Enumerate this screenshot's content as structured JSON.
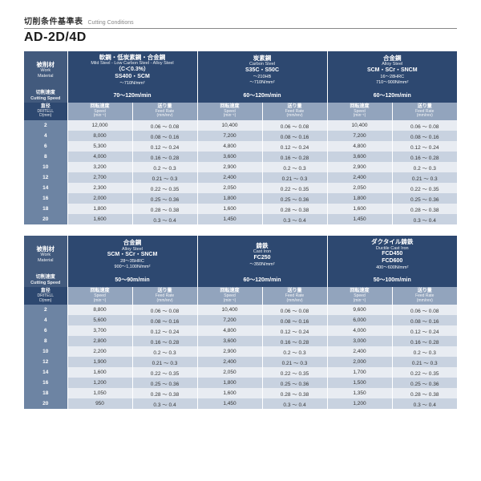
{
  "header": {
    "subtitle_jp": "切削条件基準表",
    "subtitle_en": "Cutting Conditions",
    "title": "AD-2D/4D"
  },
  "labels": {
    "work_material_jp": "被削材",
    "work_material_en": "Work\nMaterial",
    "cutting_speed_jp": "切削速度",
    "cutting_speed_en": "Cutting Speed",
    "diameter_jp": "直径",
    "diameter_en": "DRITELL\nD(mm)",
    "rotation_jp": "回転速度",
    "rotation_en": "Speed\n(min⁻¹)",
    "feed_jp": "送り量",
    "feed_en": "Feed Rate\n(mm/rev)"
  },
  "colors": {
    "header_bg": "#2d4870",
    "header_left_bg": "#425a7d",
    "subhead_bg": "#92a4bd",
    "dia_col_bg": "#6d84a3",
    "row_even": "#e8ecf2",
    "row_odd": "#c8d2e0",
    "text": "#333333"
  },
  "table1": {
    "materials": [
      {
        "title_jp": "軟鋼・低炭素鋼・合金鋼",
        "title_en": "Mild Steel - Low Carbon Steel - Alloy Steel",
        "code": "（C＜0.3%）\nSS400・SCM",
        "hb": "～710N/mm²",
        "speed": "70～120m/min"
      },
      {
        "title_jp": "炭素鋼",
        "title_en": "Carbon Steel",
        "code": "S35C・S50C",
        "hb": "～210HB\n～710N/mm²",
        "speed": "60～120m/min"
      },
      {
        "title_jp": "合金鋼",
        "title_en": "Alloy Steel",
        "code": "SCM・SCr・SNCM",
        "hb": "16～28HRC\n710～900N/mm²",
        "speed": "60～120m/min"
      }
    ],
    "rows": [
      {
        "d": "2",
        "v": [
          [
            "12,000",
            "0.06 ～ 0.08"
          ],
          [
            "10,400",
            "0.06 ～ 0.08"
          ],
          [
            "10,400",
            "0.06 ～ 0.08"
          ]
        ]
      },
      {
        "d": "4",
        "v": [
          [
            "8,000",
            "0.08 ～ 0.16"
          ],
          [
            "7,200",
            "0.08 ～ 0.16"
          ],
          [
            "7,200",
            "0.08 ～ 0.16"
          ]
        ]
      },
      {
        "d": "6",
        "v": [
          [
            "5,300",
            "0.12 ～ 0.24"
          ],
          [
            "4,800",
            "0.12 ～ 0.24"
          ],
          [
            "4,800",
            "0.12 ～ 0.24"
          ]
        ]
      },
      {
        "d": "8",
        "v": [
          [
            "4,000",
            "0.16 ～ 0.28"
          ],
          [
            "3,600",
            "0.16 ～ 0.28"
          ],
          [
            "3,600",
            "0.16 ～ 0.28"
          ]
        ]
      },
      {
        "d": "10",
        "v": [
          [
            "3,200",
            "0.2 ～ 0.3"
          ],
          [
            "2,900",
            "0.2 ～ 0.3"
          ],
          [
            "2,900",
            "0.2 ～ 0.3"
          ]
        ]
      },
      {
        "d": "12",
        "v": [
          [
            "2,700",
            "0.21 ～ 0.3"
          ],
          [
            "2,400",
            "0.21 ～ 0.3"
          ],
          [
            "2,400",
            "0.21 ～ 0.3"
          ]
        ]
      },
      {
        "d": "14",
        "v": [
          [
            "2,300",
            "0.22 ～ 0.35"
          ],
          [
            "2,050",
            "0.22 ～ 0.35"
          ],
          [
            "2,050",
            "0.22 ～ 0.35"
          ]
        ]
      },
      {
        "d": "16",
        "v": [
          [
            "2,000",
            "0.25 ～ 0.36"
          ],
          [
            "1,800",
            "0.25 ～ 0.36"
          ],
          [
            "1,800",
            "0.25 ～ 0.36"
          ]
        ]
      },
      {
        "d": "18",
        "v": [
          [
            "1,800",
            "0.28 ～ 0.38"
          ],
          [
            "1,600",
            "0.28 ～ 0.38"
          ],
          [
            "1,600",
            "0.28 ～ 0.38"
          ]
        ]
      },
      {
        "d": "20",
        "v": [
          [
            "1,600",
            "0.3 ～ 0.4"
          ],
          [
            "1,450",
            "0.3 ～ 0.4"
          ],
          [
            "1,450",
            "0.3 ～ 0.4"
          ]
        ]
      }
    ]
  },
  "table2": {
    "materials": [
      {
        "title_jp": "合金鋼",
        "title_en": "Alloy Steel",
        "code": "SCM・SCr・SNCM",
        "hb": "28～35HRC\n900～1,100N/mm²",
        "speed": "50～90m/min"
      },
      {
        "title_jp": "鋳鉄",
        "title_en": "Cast Iron",
        "code": "FC250",
        "hb": "～350N/mm²",
        "speed": "60～120m/min"
      },
      {
        "title_jp": "ダクタイル鋳鉄",
        "title_en": "Ductile Cast Iron",
        "code": "FCD450\nFCD600",
        "hb": "400～600N/mm²",
        "speed": "50～100m/min"
      }
    ],
    "rows": [
      {
        "d": "2",
        "v": [
          [
            "8,800",
            "0.06 ～ 0.08"
          ],
          [
            "10,400",
            "0.06 ～ 0.08"
          ],
          [
            "9,600",
            "0.06 ～ 0.08"
          ]
        ]
      },
      {
        "d": "4",
        "v": [
          [
            "5,600",
            "0.08 ～ 0.16"
          ],
          [
            "7,200",
            "0.08 ～ 0.16"
          ],
          [
            "6,000",
            "0.08 ～ 0.16"
          ]
        ]
      },
      {
        "d": "6",
        "v": [
          [
            "3,700",
            "0.12 ～ 0.24"
          ],
          [
            "4,800",
            "0.12 ～ 0.24"
          ],
          [
            "4,000",
            "0.12 ～ 0.24"
          ]
        ]
      },
      {
        "d": "8",
        "v": [
          [
            "2,800",
            "0.16 ～ 0.28"
          ],
          [
            "3,600",
            "0.16 ～ 0.28"
          ],
          [
            "3,000",
            "0.16 ～ 0.28"
          ]
        ]
      },
      {
        "d": "10",
        "v": [
          [
            "2,200",
            "0.2 ～ 0.3"
          ],
          [
            "2,900",
            "0.2 ～ 0.3"
          ],
          [
            "2,400",
            "0.2 ～ 0.3"
          ]
        ]
      },
      {
        "d": "12",
        "v": [
          [
            "1,900",
            "0.21 ～ 0.3"
          ],
          [
            "2,400",
            "0.21 ～ 0.3"
          ],
          [
            "2,000",
            "0.21 ～ 0.3"
          ]
        ]
      },
      {
        "d": "14",
        "v": [
          [
            "1,600",
            "0.22 ～ 0.35"
          ],
          [
            "2,050",
            "0.22 ～ 0.35"
          ],
          [
            "1,700",
            "0.22 ～ 0.35"
          ]
        ]
      },
      {
        "d": "16",
        "v": [
          [
            "1,200",
            "0.25 ～ 0.36"
          ],
          [
            "1,800",
            "0.25 ～ 0.36"
          ],
          [
            "1,500",
            "0.25 ～ 0.36"
          ]
        ]
      },
      {
        "d": "18",
        "v": [
          [
            "1,050",
            "0.28 ～ 0.38"
          ],
          [
            "1,600",
            "0.28 ～ 0.38"
          ],
          [
            "1,350",
            "0.28 ～ 0.38"
          ]
        ]
      },
      {
        "d": "20",
        "v": [
          [
            "950",
            "0.3 ～ 0.4"
          ],
          [
            "1,450",
            "0.3 ～ 0.4"
          ],
          [
            "1,200",
            "0.3 ～ 0.4"
          ]
        ]
      }
    ]
  }
}
